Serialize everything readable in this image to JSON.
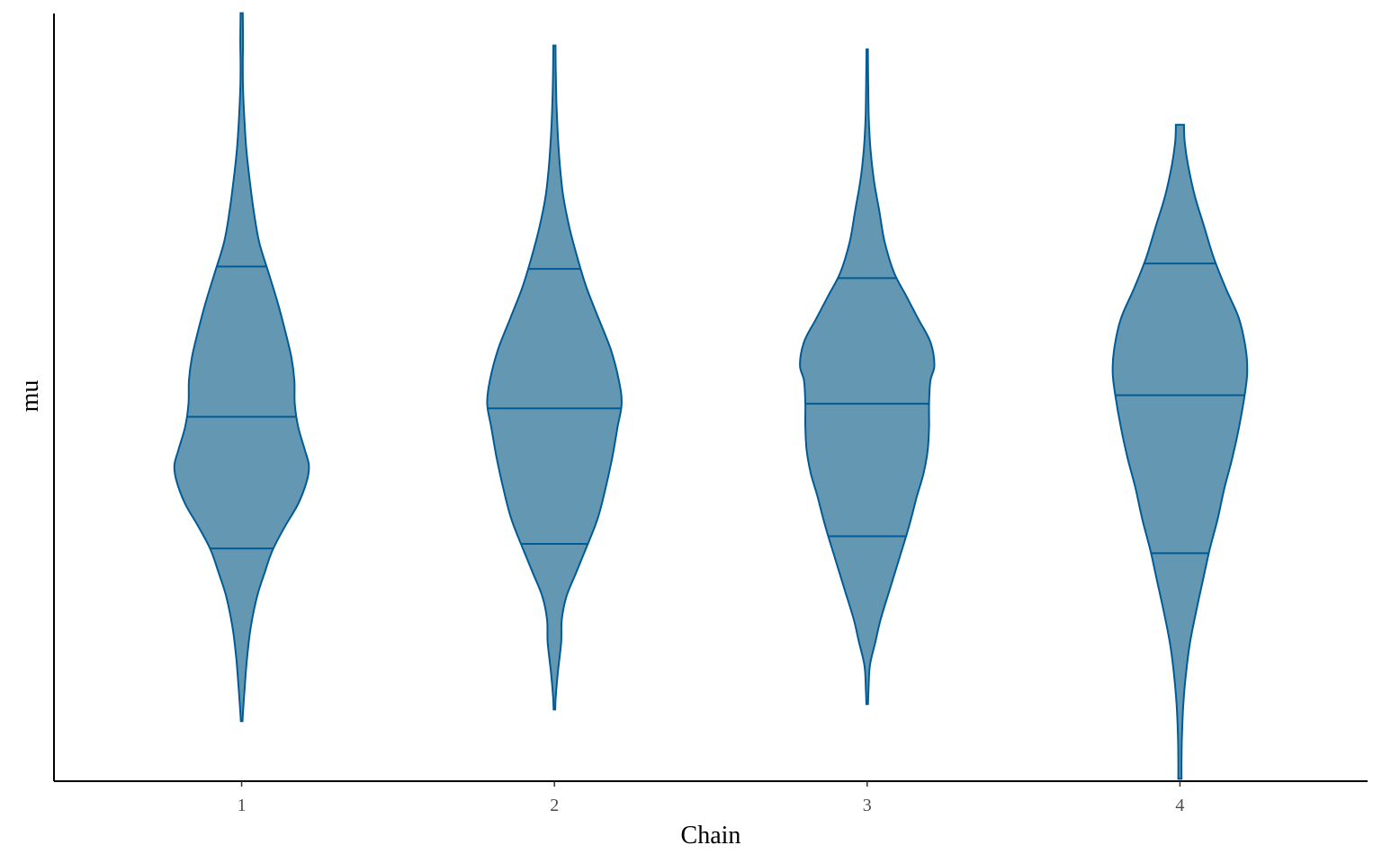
{
  "chart_data": {
    "type": "violin",
    "xlabel": "Chain",
    "ylabel": "mu",
    "categories": [
      "1",
      "2",
      "3",
      "4"
    ],
    "y_tick_labels": false,
    "ylim": [
      0,
      1
    ],
    "quantiles_drawn": [
      0.25,
      0.5,
      0.75
    ],
    "colors": {
      "fill": "#6497b1",
      "line": "#005b96"
    },
    "series": [
      {
        "category": "1",
        "min": 0.078,
        "max": 0.997,
        "q25": 0.302,
        "q50": 0.473,
        "q75": 0.668,
        "density": [
          [
            0.078,
            0.006
          ],
          [
            0.09,
            0.01
          ],
          [
            0.12,
            0.022
          ],
          [
            0.16,
            0.04
          ],
          [
            0.2,
            0.068
          ],
          [
            0.24,
            0.115
          ],
          [
            0.27,
            0.17
          ],
          [
            0.3,
            0.23
          ],
          [
            0.33,
            0.32
          ],
          [
            0.36,
            0.42
          ],
          [
            0.39,
            0.485
          ],
          [
            0.41,
            0.5
          ],
          [
            0.43,
            0.47
          ],
          [
            0.46,
            0.42
          ],
          [
            0.49,
            0.395
          ],
          [
            0.52,
            0.392
          ],
          [
            0.55,
            0.37
          ],
          [
            0.58,
            0.33
          ],
          [
            0.62,
            0.27
          ],
          [
            0.66,
            0.2
          ],
          [
            0.7,
            0.13
          ],
          [
            0.74,
            0.09
          ],
          [
            0.78,
            0.06
          ],
          [
            0.82,
            0.035
          ],
          [
            0.86,
            0.02
          ],
          [
            0.9,
            0.01
          ],
          [
            0.93,
            0.008
          ],
          [
            0.96,
            0.01
          ],
          [
            0.997,
            0.008
          ]
        ]
      },
      {
        "category": "2",
        "min": 0.093,
        "max": 0.955,
        "q25": 0.308,
        "q50": 0.484,
        "q75": 0.665,
        "density": [
          [
            0.093,
            0.006
          ],
          [
            0.11,
            0.01
          ],
          [
            0.14,
            0.025
          ],
          [
            0.18,
            0.05
          ],
          [
            0.21,
            0.055
          ],
          [
            0.24,
            0.09
          ],
          [
            0.27,
            0.16
          ],
          [
            0.3,
            0.23
          ],
          [
            0.34,
            0.32
          ],
          [
            0.38,
            0.38
          ],
          [
            0.42,
            0.43
          ],
          [
            0.46,
            0.47
          ],
          [
            0.49,
            0.5
          ],
          [
            0.52,
            0.48
          ],
          [
            0.56,
            0.42
          ],
          [
            0.6,
            0.33
          ],
          [
            0.64,
            0.24
          ],
          [
            0.68,
            0.17
          ],
          [
            0.72,
            0.11
          ],
          [
            0.76,
            0.065
          ],
          [
            0.8,
            0.04
          ],
          [
            0.84,
            0.025
          ],
          [
            0.88,
            0.015
          ],
          [
            0.92,
            0.01
          ],
          [
            0.955,
            0.008
          ]
        ]
      },
      {
        "category": "3",
        "min": 0.1,
        "max": 0.95,
        "q25": 0.318,
        "q50": 0.49,
        "q75": 0.653,
        "density": [
          [
            0.1,
            0.006
          ],
          [
            0.12,
            0.01
          ],
          [
            0.15,
            0.02
          ],
          [
            0.18,
            0.06
          ],
          [
            0.21,
            0.1
          ],
          [
            0.25,
            0.17
          ],
          [
            0.29,
            0.24
          ],
          [
            0.33,
            0.31
          ],
          [
            0.37,
            0.37
          ],
          [
            0.4,
            0.42
          ],
          [
            0.43,
            0.45
          ],
          [
            0.46,
            0.46
          ],
          [
            0.49,
            0.46
          ],
          [
            0.52,
            0.47
          ],
          [
            0.54,
            0.5
          ],
          [
            0.57,
            0.47
          ],
          [
            0.6,
            0.38
          ],
          [
            0.63,
            0.29
          ],
          [
            0.66,
            0.2
          ],
          [
            0.7,
            0.13
          ],
          [
            0.74,
            0.09
          ],
          [
            0.78,
            0.05
          ],
          [
            0.82,
            0.025
          ],
          [
            0.86,
            0.012
          ],
          [
            0.9,
            0.008
          ],
          [
            0.95,
            0.005
          ]
        ]
      },
      {
        "category": "4",
        "min": 0.003,
        "max": 0.852,
        "q25": 0.296,
        "q50": 0.501,
        "q75": 0.672,
        "density": [
          [
            0.003,
            0.012
          ],
          [
            0.03,
            0.012
          ],
          [
            0.06,
            0.015
          ],
          [
            0.1,
            0.025
          ],
          [
            0.14,
            0.045
          ],
          [
            0.18,
            0.075
          ],
          [
            0.22,
            0.12
          ],
          [
            0.26,
            0.17
          ],
          [
            0.3,
            0.22
          ],
          [
            0.34,
            0.28
          ],
          [
            0.38,
            0.33
          ],
          [
            0.42,
            0.39
          ],
          [
            0.46,
            0.44
          ],
          [
            0.5,
            0.48
          ],
          [
            0.53,
            0.5
          ],
          [
            0.56,
            0.49
          ],
          [
            0.6,
            0.44
          ],
          [
            0.64,
            0.34
          ],
          [
            0.68,
            0.25
          ],
          [
            0.72,
            0.18
          ],
          [
            0.76,
            0.11
          ],
          [
            0.8,
            0.06
          ],
          [
            0.83,
            0.035
          ],
          [
            0.852,
            0.03
          ]
        ]
      }
    ]
  }
}
